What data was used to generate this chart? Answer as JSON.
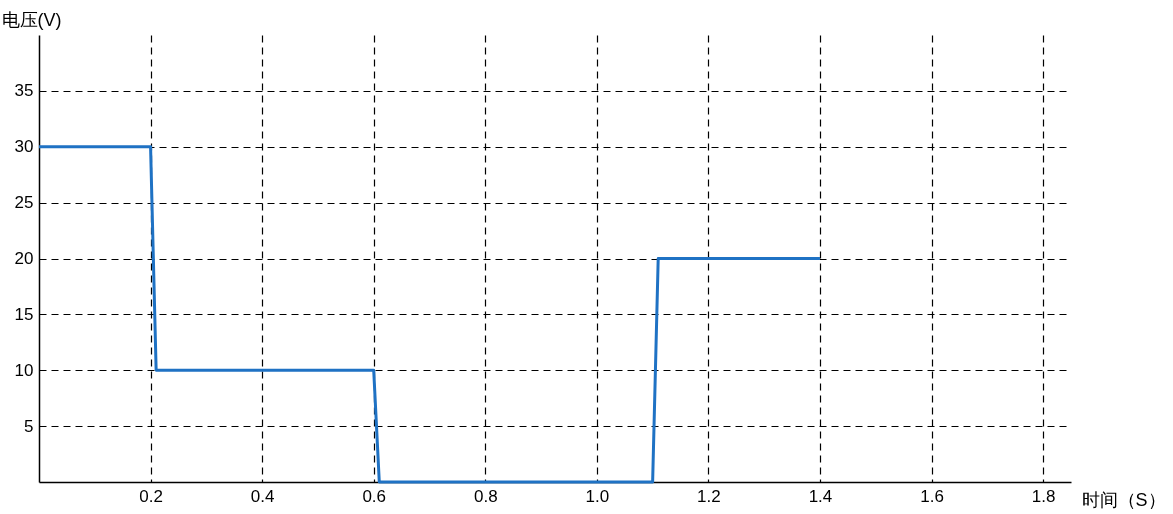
{
  "chart_data": {
    "type": "line",
    "xlabel": "时间（S）",
    "ylabel": "电压(V)",
    "x": [
      0,
      0.2,
      0.21,
      0.6,
      0.61,
      1.1,
      1.11,
      1.4
    ],
    "series": [
      {
        "color": "#1f72c4",
        "values": [
          30,
          30,
          10,
          10,
          0,
          0,
          20,
          20
        ]
      }
    ],
    "xlim": [
      0,
      1.85
    ],
    "xticks": [
      0.2,
      0.4,
      0.6,
      0.8,
      {
        "value": 1,
        "label": "1.0"
      },
      1.2,
      1.4,
      1.6,
      1.8
    ],
    "ylim": [
      0,
      40
    ],
    "yticks": [
      5,
      10,
      15,
      20,
      25,
      30,
      35
    ],
    "grid": true
  }
}
